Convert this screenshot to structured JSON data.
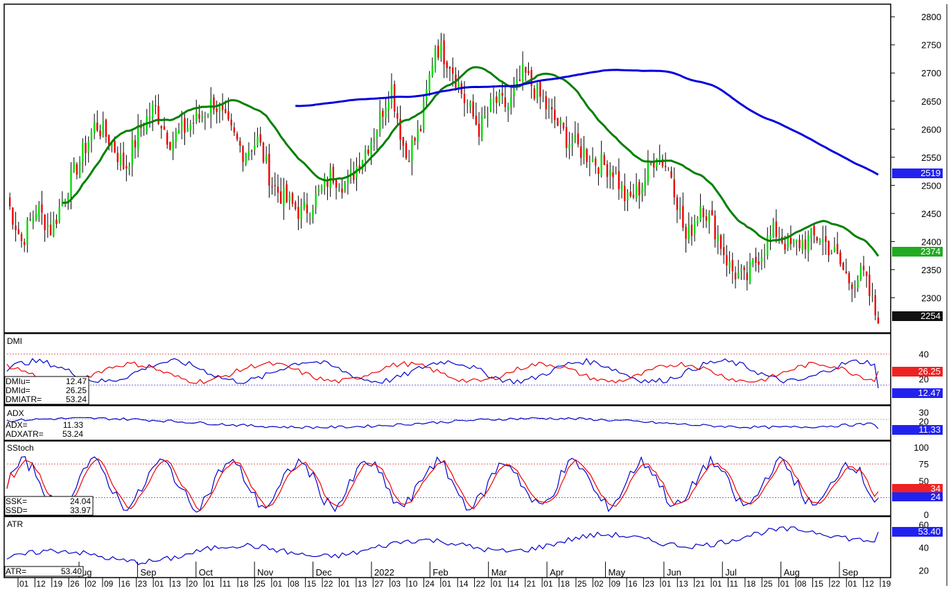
{
  "chart_data": {
    "type": "candlestick",
    "main": {
      "ylim": [
        2240,
        2820
      ],
      "y_ticks": [
        2300,
        2350,
        2400,
        2450,
        2500,
        2550,
        2600,
        2650,
        2700,
        2750,
        2800
      ],
      "ohlc_weekly_close": [
        2475,
        2400,
        2460,
        2420,
        2490,
        2550,
        2610,
        2580,
        2530,
        2600,
        2640,
        2580,
        2600,
        2620,
        2650,
        2600,
        2560,
        2580,
        2500,
        2470,
        2450,
        2480,
        2520,
        2500,
        2550,
        2600,
        2680,
        2550,
        2600,
        2750,
        2720,
        2650,
        2600,
        2650,
        2640,
        2700,
        2660,
        2620,
        2580,
        2560,
        2540,
        2530,
        2470,
        2500,
        2560,
        2520,
        2400,
        2470,
        2420,
        2350,
        2330,
        2380,
        2420,
        2390,
        2400,
        2410,
        2380,
        2330,
        2340,
        2254
      ],
      "ma_green": {
        "name": "",
        "last": 2374
      },
      "ma_blue": {
        "name": "",
        "last": 2519
      },
      "last_close": 2254,
      "labels": {
        "green": "2374",
        "blue": "2519",
        "close": "2254"
      }
    },
    "dmi": {
      "title": "DMI",
      "y_ticks": [
        20,
        40
      ],
      "dmiu": 12.47,
      "dmid": 26.25,
      "dmiatr": 53.24,
      "labels": {
        "u": "DMIu=",
        "u_v": "12.47",
        "d": "DMId=",
        "d_v": "26.25",
        "atr": "DMIATR=",
        "atr_v": "53.24",
        "red_tag": "26.25",
        "blue_tag": "12.47"
      }
    },
    "adx": {
      "title": "ADX",
      "y_ticks": [
        20,
        30
      ],
      "adx": 11.33,
      "adxatr": 53.24,
      "labels": {
        "adx": "ADX=",
        "adx_v": "11.33",
        "atr": "ADXATR=",
        "atr_v": "53.24",
        "tag": "11.33"
      }
    },
    "sstoch": {
      "title": "SStoch",
      "y_ticks": [
        0,
        25,
        50,
        75,
        100
      ],
      "ssk": 24.04,
      "ssd": 33.97,
      "labels": {
        "k": "SSK=",
        "k_v": "24.04",
        "d": "SSD=",
        "d_v": "33.97",
        "red_tag": "34",
        "blue_tag": "24"
      }
    },
    "atr": {
      "title": "ATR",
      "y_ticks": [
        20,
        40,
        60
      ],
      "atr": 53.4,
      "labels": {
        "atr": "ATR=",
        "atr_v": "53.40",
        "tag": "53.40"
      }
    },
    "x_day_ticks": [
      "01",
      "12",
      "19",
      "26",
      "02",
      "09",
      "16",
      "23",
      "01",
      "13",
      "20",
      "01",
      "11",
      "18",
      "25",
      "01",
      "08",
      "15",
      "22",
      "01",
      "13",
      "27",
      "03",
      "10",
      "24",
      "01",
      "14",
      "22",
      "01",
      "14",
      "21",
      "01",
      "18",
      "25",
      "02",
      "09",
      "16",
      "23",
      "01",
      "13",
      "21",
      "01",
      "11",
      "18",
      "25",
      "01",
      "08",
      "15",
      "22",
      "01",
      "12",
      "19"
    ],
    "x_month_labels": [
      "ug",
      "Sep",
      "Oct",
      "Nov",
      "Dec",
      "2022",
      "Feb",
      "Mar",
      "Apr",
      "May",
      "Jun",
      "Jul",
      "Aug",
      "Sep"
    ]
  },
  "colors": {
    "up": "#00dd00",
    "down": "#ee0000",
    "ma_green": "#008000",
    "ma_blue": "#0000dd",
    "dmi_blue": "#0000cc",
    "dmi_red": "#ee0000"
  }
}
